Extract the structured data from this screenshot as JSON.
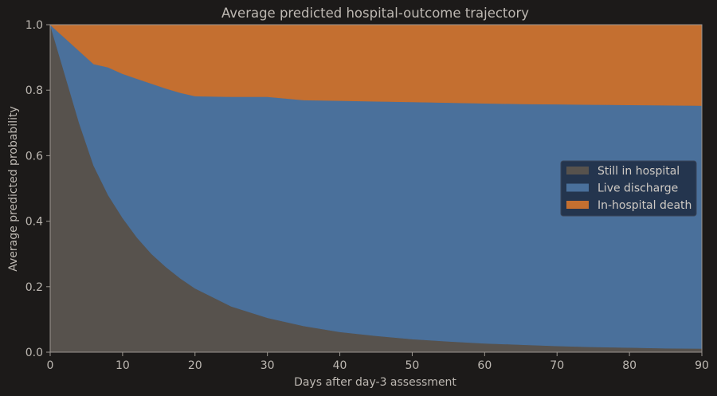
{
  "chart_data": {
    "type": "area",
    "title": "Average predicted hospital-outcome trajectory",
    "xlabel": "Days after day-3 assessment",
    "ylabel": "Average predicted probability",
    "xlim": [
      0,
      90
    ],
    "ylim": [
      0,
      1
    ],
    "xticks": [
      0,
      10,
      20,
      30,
      40,
      50,
      60,
      70,
      80,
      90
    ],
    "yticks": [
      0.0,
      0.2,
      0.4,
      0.6,
      0.8,
      1.0
    ],
    "ytick_labels": [
      "0.0",
      "0.2",
      "0.4",
      "0.6",
      "0.8",
      "1.0"
    ],
    "stacked": true,
    "grid": false,
    "legend_position": "center-right",
    "x": [
      0,
      2,
      4,
      6,
      8,
      10,
      12,
      14,
      16,
      18,
      20,
      25,
      30,
      35,
      40,
      45,
      50,
      55,
      60,
      65,
      70,
      75,
      80,
      85,
      90
    ],
    "series": [
      {
        "name": "Still in hospital",
        "color": "#57524d",
        "values": [
          1.0,
          0.85,
          0.7,
          0.57,
          0.48,
          0.41,
          0.35,
          0.3,
          0.26,
          0.225,
          0.195,
          0.14,
          0.105,
          0.08,
          0.062,
          0.05,
          0.04,
          0.033,
          0.027,
          0.023,
          0.019,
          0.016,
          0.014,
          0.012,
          0.011
        ]
      },
      {
        "name": "Live discharge",
        "color": "#4a709b",
        "values": [
          0.0,
          0.11,
          0.22,
          0.31,
          0.39,
          0.44,
          0.485,
          0.52,
          0.545,
          0.567,
          0.587,
          0.64,
          0.675,
          0.69,
          0.706,
          0.716,
          0.724,
          0.729,
          0.733,
          0.735,
          0.738,
          0.74,
          0.741,
          0.742,
          0.742
        ]
      },
      {
        "name": "In-hospital death",
        "color": "#c46f30",
        "values": [
          0.0,
          0.04,
          0.08,
          0.12,
          0.13,
          0.15,
          0.165,
          0.18,
          0.195,
          0.208,
          0.218,
          0.22,
          0.22,
          0.23,
          0.232,
          0.234,
          0.236,
          0.238,
          0.24,
          0.242,
          0.243,
          0.244,
          0.245,
          0.246,
          0.247
        ]
      }
    ]
  },
  "colors": {
    "background": "#1c1a19",
    "axis": "#9c9791",
    "text": "#bdb8b2",
    "legend_bg": "#22314a"
  }
}
